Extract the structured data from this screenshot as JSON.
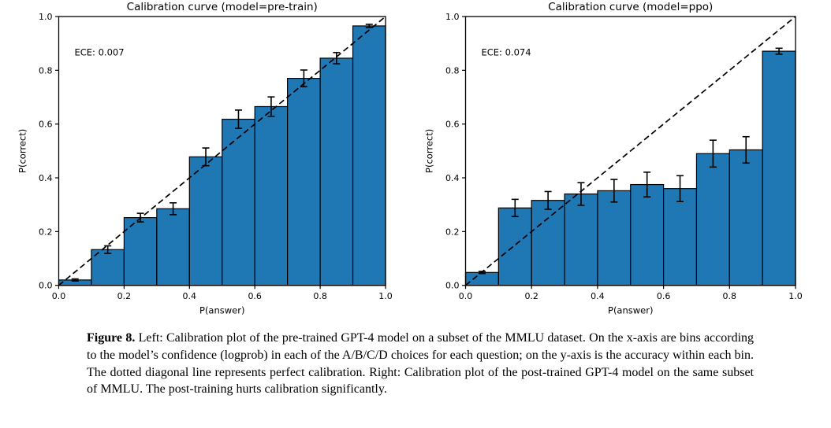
{
  "page": {
    "background": "#ffffff",
    "text_color": "#000000"
  },
  "chart_data": [
    {
      "type": "bar",
      "title": "Calibration curve (model=pre-train)",
      "annotation": "ECE: 0.007",
      "xlabel": "P(answer)",
      "ylabel": "P(correct)",
      "xlim": [
        0.0,
        1.0
      ],
      "ylim": [
        0.0,
        1.0
      ],
      "xticks": [
        0.0,
        0.2,
        0.4,
        0.6,
        0.8,
        1.0
      ],
      "yticks": [
        0.0,
        0.2,
        0.4,
        0.6,
        0.8,
        1.0
      ],
      "grid": false,
      "legend": null,
      "bin_edges": [
        0.0,
        0.1,
        0.2,
        0.3,
        0.4,
        0.5,
        0.6,
        0.7,
        0.8,
        0.9,
        1.0
      ],
      "bin_centers": [
        0.05,
        0.15,
        0.25,
        0.35,
        0.45,
        0.55,
        0.65,
        0.75,
        0.85,
        0.95
      ],
      "values": [
        0.02,
        0.133,
        0.252,
        0.285,
        0.478,
        0.618,
        0.665,
        0.77,
        0.845,
        0.965
      ],
      "errors": [
        0.004,
        0.014,
        0.016,
        0.022,
        0.033,
        0.034,
        0.036,
        0.031,
        0.021,
        0.006
      ],
      "diagonal": {
        "from": [
          0.0,
          0.0
        ],
        "to": [
          1.0,
          1.0
        ],
        "style": "dashed",
        "meaning": "perfect calibration"
      },
      "bar_color": "#1f77b4",
      "bar_edge_color": "#000000",
      "line_color": "#000000"
    },
    {
      "type": "bar",
      "title": "Calibration curve (model=ppo)",
      "annotation": "ECE: 0.074",
      "xlabel": "P(answer)",
      "ylabel": "P(correct)",
      "xlim": [
        0.0,
        1.0
      ],
      "ylim": [
        0.0,
        1.0
      ],
      "xticks": [
        0.0,
        0.2,
        0.4,
        0.6,
        0.8,
        1.0
      ],
      "yticks": [
        0.0,
        0.2,
        0.4,
        0.6,
        0.8,
        1.0
      ],
      "grid": false,
      "legend": null,
      "bin_edges": [
        0.0,
        0.1,
        0.2,
        0.3,
        0.4,
        0.5,
        0.6,
        0.7,
        0.8,
        0.9,
        1.0
      ],
      "bin_centers": [
        0.05,
        0.15,
        0.25,
        0.35,
        0.45,
        0.55,
        0.65,
        0.75,
        0.85,
        0.95
      ],
      "values": [
        0.048,
        0.288,
        0.316,
        0.34,
        0.352,
        0.375,
        0.36,
        0.49,
        0.504,
        0.871
      ],
      "errors": [
        0.004,
        0.032,
        0.033,
        0.042,
        0.042,
        0.046,
        0.048,
        0.05,
        0.049,
        0.011
      ],
      "diagonal": {
        "from": [
          0.0,
          0.0
        ],
        "to": [
          1.0,
          1.0
        ],
        "style": "dashed",
        "meaning": "perfect calibration"
      },
      "bar_color": "#1f77b4",
      "bar_edge_color": "#000000",
      "line_color": "#000000"
    }
  ],
  "caption": {
    "label": "Figure 8.",
    "text": "Left: Calibration plot of the pre-trained GPT-4 model on a subset of the MMLU dataset. On the x-axis are bins according to the model’s confidence (logprob) in each of the A/B/C/D choices for each question; on the y-axis is the accuracy within each bin. The dotted diagonal line represents perfect calibration. Right: Calibration plot of the post-trained GPT-4 model on the same subset of MMLU. The post-training hurts calibration significantly."
  }
}
